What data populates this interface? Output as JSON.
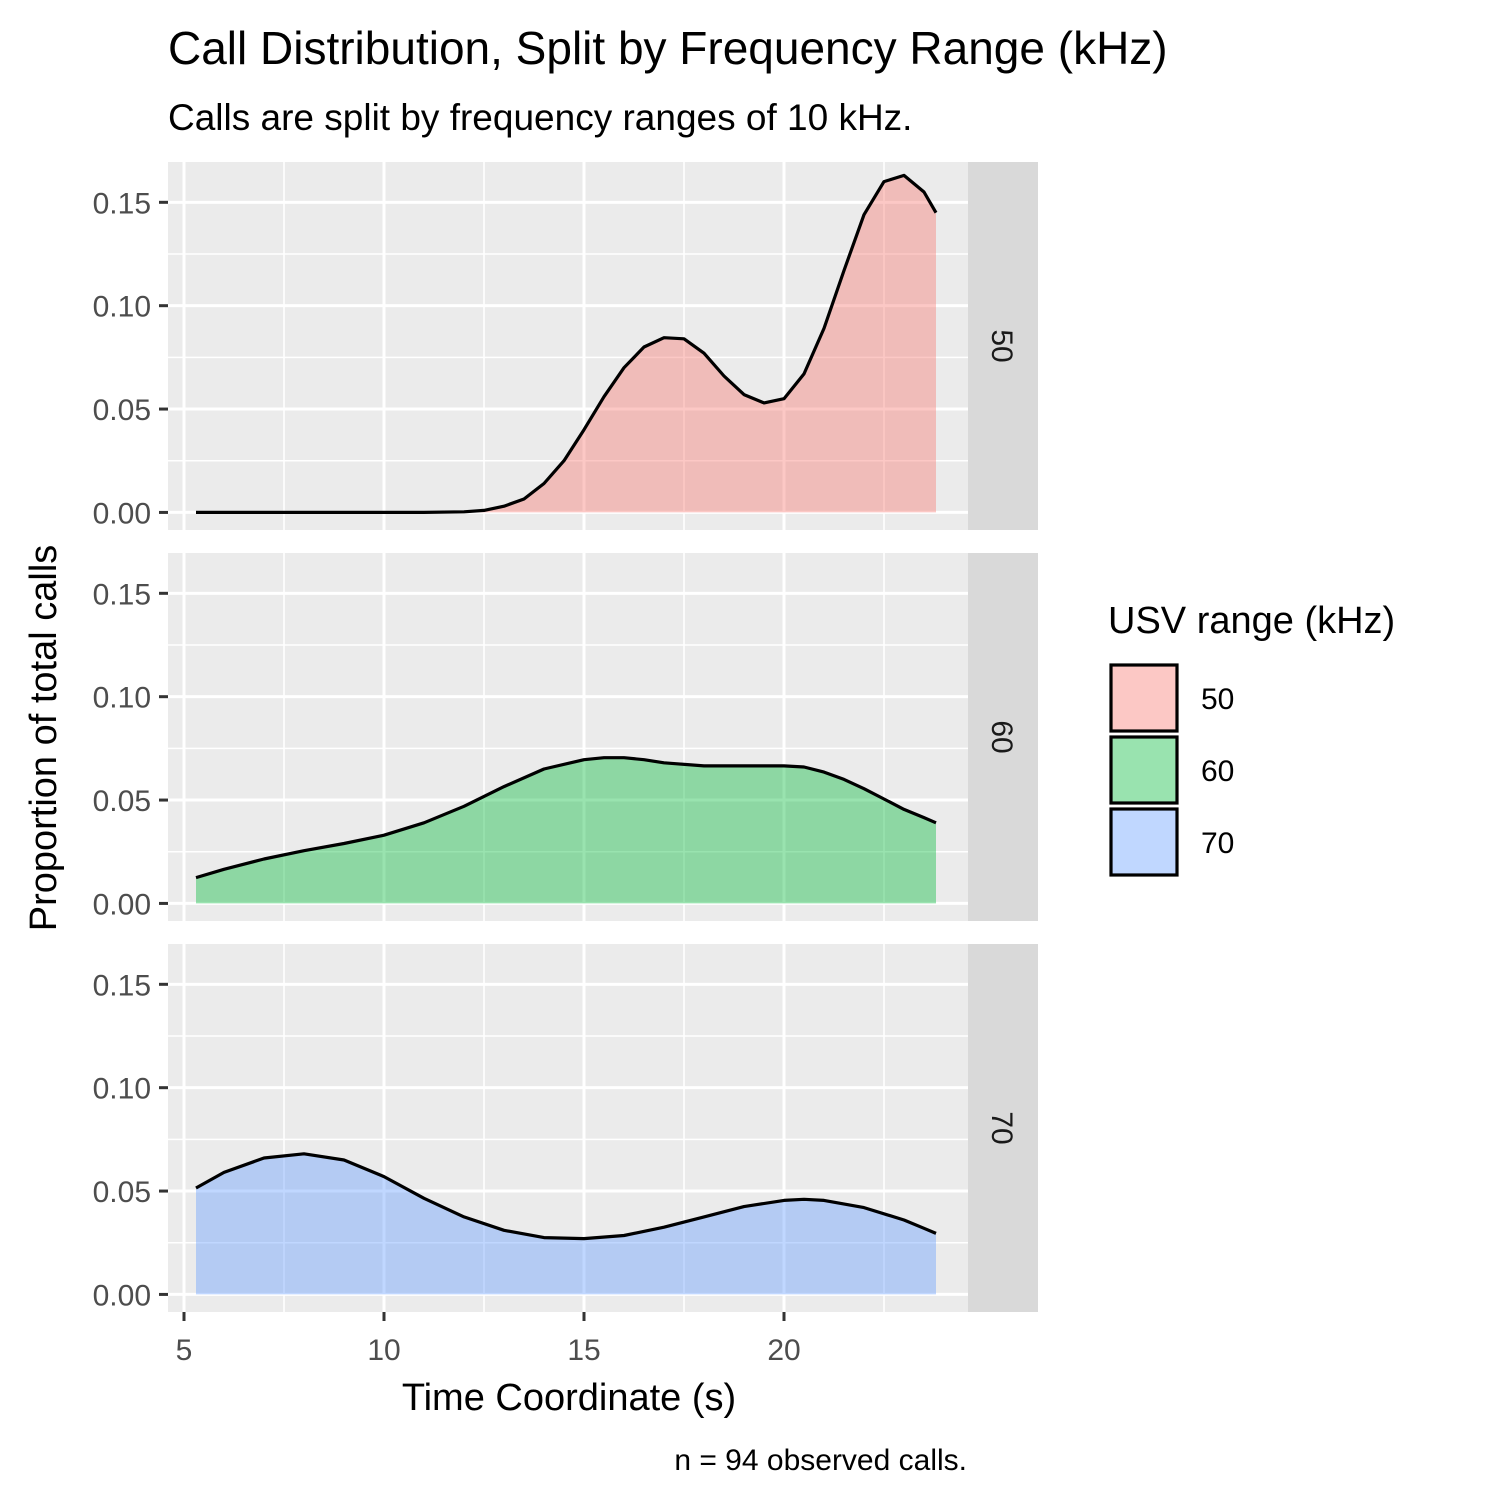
{
  "chart_data": {
    "type": "area",
    "title": "Call Distribution, Split by Frequency Range (kHz)",
    "subtitle": "Calls are split by frequency ranges of 10 kHz.",
    "xlabel": "Time Coordinate (s)",
    "ylabel": "Proportion of total calls",
    "caption": "n = 94 observed calls.",
    "xlim": [
      4.6,
      24.6
    ],
    "ylim": [
      -0.0085,
      0.1695
    ],
    "x_ticks": [
      5,
      10,
      15,
      20
    ],
    "x_tick_labels": [
      "5",
      "10",
      "15",
      "20"
    ],
    "y_ticks": [
      0,
      0.05,
      0.1,
      0.15
    ],
    "y_tick_labels": [
      "0.00",
      "0.05",
      "0.10",
      "0.15"
    ],
    "grid": true,
    "facets": "rows",
    "legend": {
      "title": "USV range (kHz)",
      "position": "right",
      "entries": [
        "50",
        "60",
        "70"
      ]
    },
    "series": [
      {
        "name": "50",
        "strip_label": "50",
        "color": "#F8766D",
        "x": [
          5.3,
          6,
          7,
          8,
          9,
          10,
          11,
          12,
          12.5,
          13,
          13.5,
          14,
          14.5,
          15,
          15.5,
          16,
          16.5,
          17,
          17.5,
          18,
          18.5,
          19,
          19.5,
          20,
          20.5,
          21,
          21.5,
          22,
          22.5,
          23,
          23.5,
          23.8
        ],
        "values": [
          0,
          0,
          0,
          0,
          0,
          0,
          0,
          0.0003,
          0.001,
          0.003,
          0.0065,
          0.014,
          0.025,
          0.04,
          0.056,
          0.07,
          0.08,
          0.0845,
          0.084,
          0.077,
          0.066,
          0.057,
          0.053,
          0.055,
          0.067,
          0.089,
          0.117,
          0.144,
          0.16,
          0.163,
          0.155,
          0.145
        ]
      },
      {
        "name": "60",
        "strip_label": "60",
        "color": "#00BA38",
        "x": [
          5.3,
          6,
          7,
          8,
          9,
          10,
          11,
          12,
          13,
          14,
          15,
          15.5,
          16,
          16.5,
          17,
          18,
          19,
          20,
          20.5,
          21,
          21.5,
          22,
          22.5,
          23,
          23.5,
          23.8
        ],
        "values": [
          0.0125,
          0.0165,
          0.0215,
          0.0255,
          0.029,
          0.033,
          0.039,
          0.047,
          0.0565,
          0.065,
          0.0695,
          0.0705,
          0.0705,
          0.0695,
          0.068,
          0.0665,
          0.0665,
          0.0665,
          0.066,
          0.0635,
          0.06,
          0.0555,
          0.0505,
          0.0455,
          0.0415,
          0.039
        ]
      },
      {
        "name": "70",
        "strip_label": "70",
        "color": "#619CFF",
        "x": [
          5.3,
          6,
          7,
          8,
          9,
          10,
          11,
          12,
          13,
          14,
          15,
          16,
          17,
          18,
          19,
          20,
          20.5,
          21,
          22,
          23,
          23.5,
          23.8
        ],
        "values": [
          0.0515,
          0.059,
          0.066,
          0.068,
          0.065,
          0.057,
          0.0465,
          0.0375,
          0.031,
          0.0275,
          0.027,
          0.0285,
          0.0325,
          0.0375,
          0.0425,
          0.0455,
          0.046,
          0.0455,
          0.042,
          0.036,
          0.032,
          0.0295
        ]
      }
    ]
  }
}
